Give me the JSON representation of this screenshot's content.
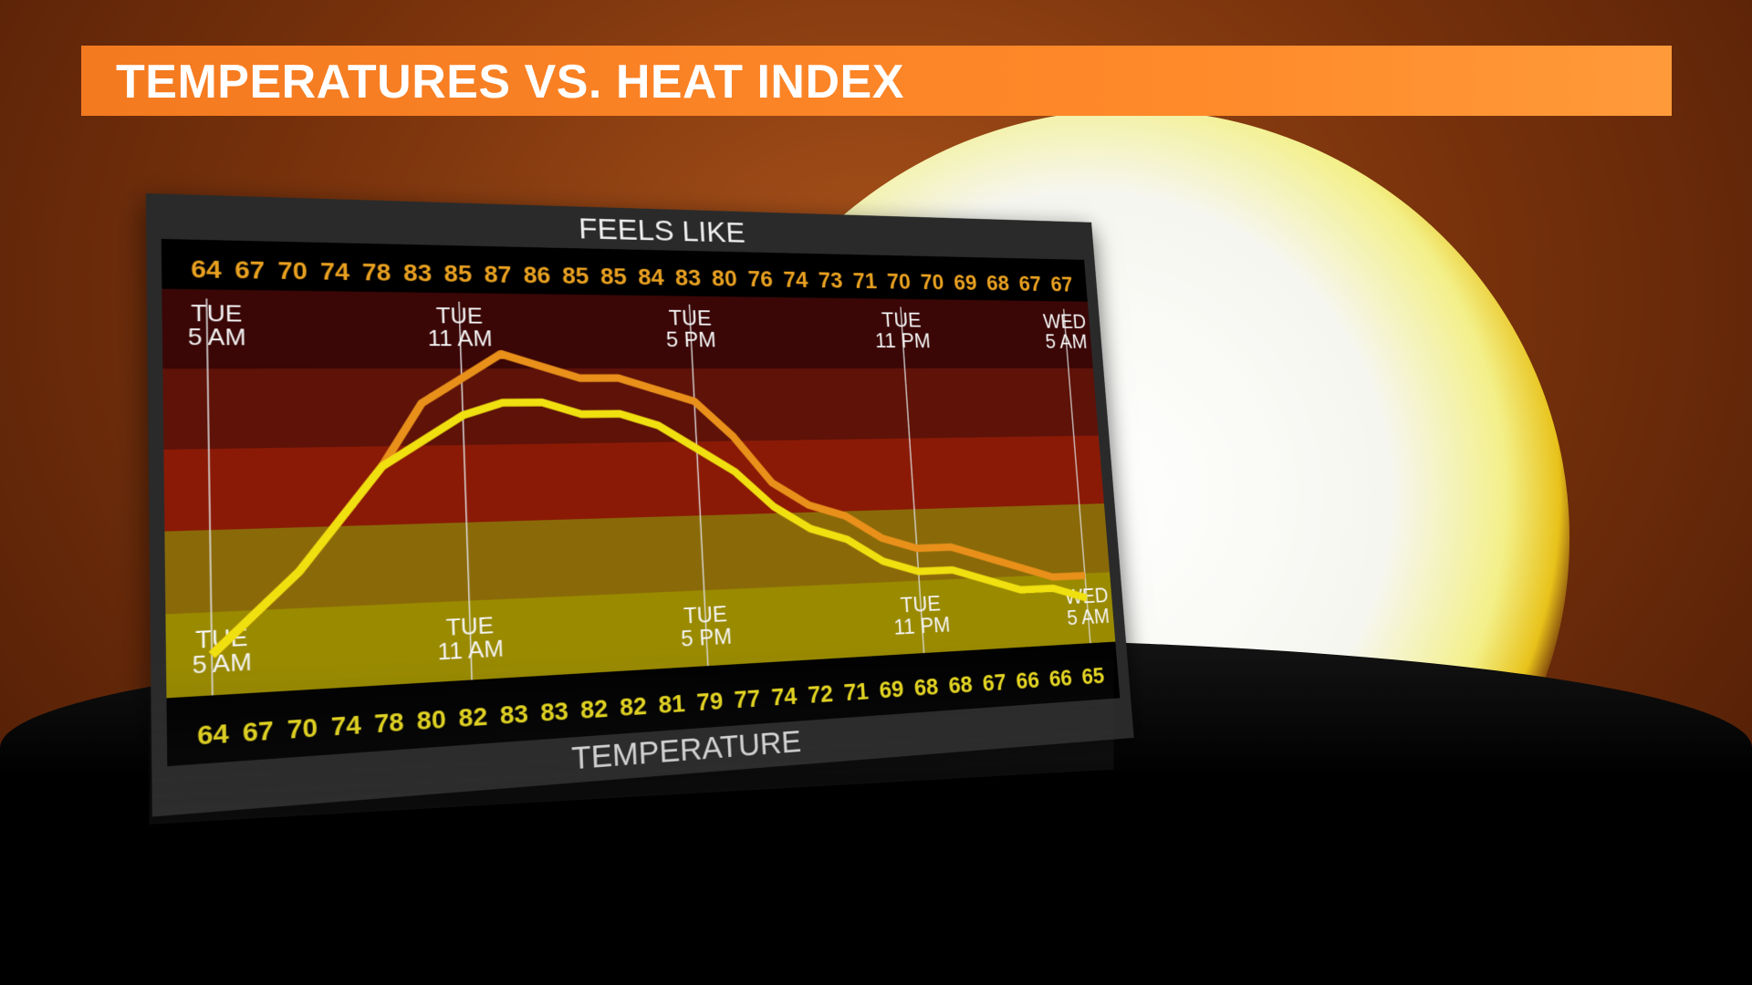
{
  "header": {
    "title": "TEMPERATURES VS. HEAT INDEX"
  },
  "chart_data": {
    "type": "line",
    "title_top": "FEELS LIKE",
    "title_bottom": "TEMPERATURE",
    "series": [
      {
        "name": "FEELS LIKE",
        "color": "#e8901a",
        "values": [
          64,
          67,
          70,
          74,
          78,
          83,
          85,
          87,
          86,
          85,
          85,
          84,
          83,
          80,
          76,
          74,
          73,
          71,
          70,
          70,
          69,
          68,
          67,
          67
        ]
      },
      {
        "name": "TEMPERATURE",
        "color": "#f0e010",
        "values": [
          64,
          67,
          70,
          74,
          78,
          80,
          82,
          83,
          83,
          82,
          82,
          81,
          79,
          77,
          74,
          72,
          71,
          69,
          68,
          68,
          67,
          66,
          66,
          65
        ]
      }
    ],
    "time_markers": [
      {
        "day": "TUE",
        "time": "5 AM",
        "index": 0
      },
      {
        "day": "TUE",
        "time": "11 AM",
        "index": 6
      },
      {
        "day": "TUE",
        "time": "5 PM",
        "index": 12
      },
      {
        "day": "TUE",
        "time": "11 PM",
        "index": 18
      },
      {
        "day": "WED",
        "time": "5 AM",
        "index": 23
      }
    ],
    "band_colors": [
      "#3a0606",
      "#5e1208",
      "#8a1a06",
      "#8a6a08",
      "#9a8a00"
    ]
  }
}
